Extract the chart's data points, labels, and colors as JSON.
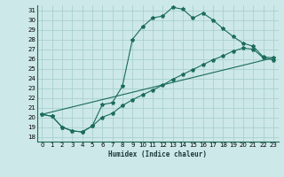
{
  "xlabel": "Humidex (Indice chaleur)",
  "bg_color": "#cde8e8",
  "grid_color": "#aacfcf",
  "line_color": "#1a6b5a",
  "xlim": [
    -0.5,
    23.5
  ],
  "ylim": [
    17.5,
    31.5
  ],
  "xticks": [
    0,
    1,
    2,
    3,
    4,
    5,
    6,
    7,
    8,
    9,
    10,
    11,
    12,
    13,
    14,
    15,
    16,
    17,
    18,
    19,
    20,
    21,
    22,
    23
  ],
  "yticks": [
    18,
    19,
    20,
    21,
    22,
    23,
    24,
    25,
    26,
    27,
    28,
    29,
    30,
    31
  ],
  "line1_x": [
    0,
    1,
    2,
    3,
    4,
    5,
    6,
    7,
    8,
    9,
    10,
    11,
    12,
    13,
    14,
    15,
    16,
    17,
    18,
    19,
    20,
    21,
    22,
    23
  ],
  "line1_y": [
    20.3,
    20.1,
    19.0,
    18.6,
    18.5,
    19.1,
    21.3,
    21.5,
    23.2,
    28.0,
    29.3,
    30.2,
    30.4,
    31.3,
    31.1,
    30.2,
    30.7,
    30.0,
    29.1,
    28.3,
    27.6,
    27.3,
    26.2,
    26.1
  ],
  "line2_x": [
    0,
    1,
    2,
    3,
    4,
    5,
    6,
    7,
    8,
    9,
    10,
    11,
    12,
    13,
    14,
    15,
    16,
    17,
    18,
    19,
    20,
    21,
    22,
    23
  ],
  "line2_y": [
    20.3,
    20.1,
    19.0,
    18.6,
    18.5,
    19.1,
    20.0,
    20.4,
    21.2,
    21.8,
    22.3,
    22.8,
    23.3,
    23.9,
    24.4,
    24.9,
    25.4,
    25.9,
    26.3,
    26.8,
    27.1,
    27.0,
    26.1,
    25.9
  ],
  "line3_x": [
    0,
    23
  ],
  "line3_y": [
    20.3,
    26.1
  ]
}
